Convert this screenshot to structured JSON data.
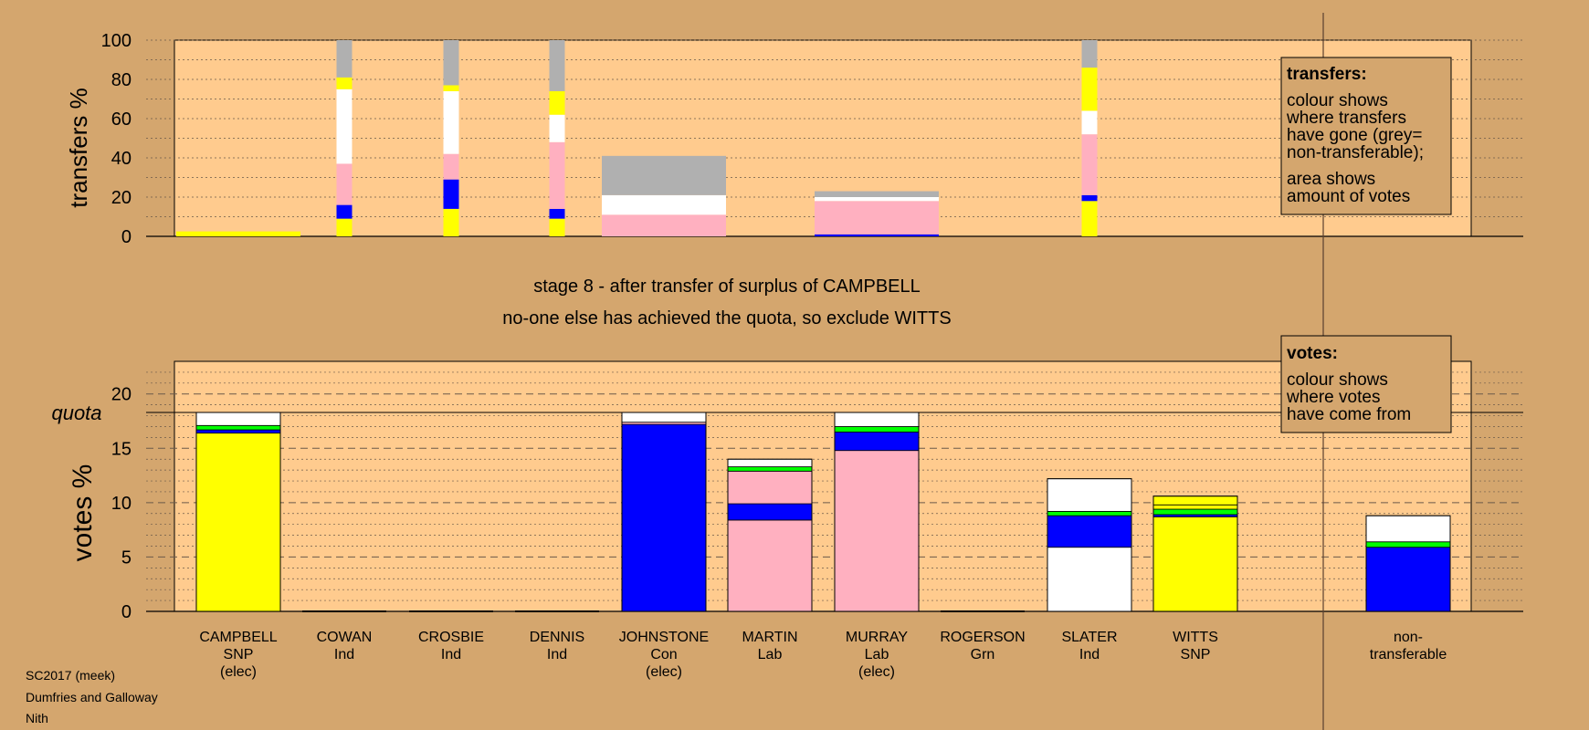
{
  "chart_data": {
    "type": "bar",
    "colors": {
      "background": "#d4a66e",
      "plot_panel": "#ffcb8e",
      "SNP": "#ffff00",
      "Con": "#0000ff",
      "Lab": "#ffb0c0",
      "Grn": "#00ff00",
      "Ind": "#ffffff",
      "non_transferable": "#b0b0b0"
    },
    "top_panel": {
      "ylabel": "transfers %",
      "yticks": [
        "0",
        "20",
        "40",
        "60",
        "80",
        "100"
      ],
      "ylim": [
        0,
        100
      ],
      "bars": [
        {
          "candidate": "CAMPBELL",
          "width": "wide",
          "segments": [
            {
              "party": "SNP",
              "from": 0,
              "to": 2.5
            }
          ]
        },
        {
          "candidate": "COWAN",
          "width": "narrow",
          "segments": [
            {
              "party": "SNP",
              "from": 0,
              "to": 9
            },
            {
              "party": "Con",
              "from": 9,
              "to": 16
            },
            {
              "party": "Lab",
              "from": 16,
              "to": 37
            },
            {
              "party": "Ind",
              "from": 37,
              "to": 75
            },
            {
              "party": "SNP",
              "from": 75,
              "to": 81
            },
            {
              "party": "non_transferable",
              "from": 81,
              "to": 100
            }
          ]
        },
        {
          "candidate": "CROSBIE",
          "width": "narrow",
          "segments": [
            {
              "party": "SNP",
              "from": 0,
              "to": 14
            },
            {
              "party": "Con",
              "from": 14,
              "to": 29
            },
            {
              "party": "Lab",
              "from": 29,
              "to": 42
            },
            {
              "party": "Ind",
              "from": 42,
              "to": 74
            },
            {
              "party": "SNP",
              "from": 74,
              "to": 77
            },
            {
              "party": "non_transferable",
              "from": 77,
              "to": 100
            }
          ]
        },
        {
          "candidate": "DENNIS",
          "width": "narrow",
          "segments": [
            {
              "party": "SNP",
              "from": 0,
              "to": 9
            },
            {
              "party": "Con",
              "from": 9,
              "to": 14
            },
            {
              "party": "Lab",
              "from": 14,
              "to": 48
            },
            {
              "party": "Ind",
              "from": 48,
              "to": 62
            },
            {
              "party": "SNP",
              "from": 62,
              "to": 74
            },
            {
              "party": "non_transferable",
              "from": 74,
              "to": 100
            }
          ]
        },
        {
          "candidate": "JOHNSTONE",
          "width": "wide",
          "segments": [
            {
              "party": "Lab",
              "from": 0,
              "to": 11
            },
            {
              "party": "Ind",
              "from": 11,
              "to": 21
            },
            {
              "party": "non_transferable",
              "from": 21,
              "to": 41
            }
          ]
        },
        {
          "candidate": "MURRAY",
          "width": "wide",
          "segments": [
            {
              "party": "Con",
              "from": 0,
              "to": 1
            },
            {
              "party": "Lab",
              "from": 1,
              "to": 18
            },
            {
              "party": "Ind",
              "from": 18,
              "to": 20
            },
            {
              "party": "non_transferable",
              "from": 20,
              "to": 23
            }
          ]
        },
        {
          "candidate": "SLATER",
          "width": "narrow",
          "segments": [
            {
              "party": "SNP",
              "from": 0,
              "to": 18
            },
            {
              "party": "Con",
              "from": 18,
              "to": 21
            },
            {
              "party": "Lab",
              "from": 21,
              "to": 52
            },
            {
              "party": "Ind",
              "from": 52,
              "to": 64
            },
            {
              "party": "SNP",
              "from": 64,
              "to": 86
            },
            {
              "party": "non_transferable",
              "from": 86,
              "to": 100
            }
          ]
        }
      ]
    },
    "bottom_panel": {
      "ylabel": "votes %",
      "yticks": [
        "0",
        "5",
        "10",
        "15",
        "20"
      ],
      "ylim": [
        0,
        23
      ],
      "quota": 18.3,
      "quota_label": "quota",
      "bars": [
        {
          "candidate": "CAMPBELL",
          "segments": [
            {
              "party": "SNP",
              "from": 0,
              "to": 16.4
            },
            {
              "party": "Con",
              "from": 16.4,
              "to": 16.7
            },
            {
              "party": "Grn",
              "from": 16.7,
              "to": 17.1
            },
            {
              "party": "Ind",
              "from": 17.1,
              "to": 18.3
            }
          ]
        },
        {
          "candidate": "COWAN",
          "segments": []
        },
        {
          "candidate": "CROSBIE",
          "segments": []
        },
        {
          "candidate": "DENNIS",
          "segments": []
        },
        {
          "candidate": "JOHNSTONE",
          "segments": [
            {
              "party": "Con",
              "from": 0,
              "to": 17.2
            },
            {
              "party": "Lab",
              "from": 17.2,
              "to": 17.4
            },
            {
              "party": "Ind",
              "from": 17.4,
              "to": 18.3
            }
          ]
        },
        {
          "candidate": "MARTIN",
          "segments": [
            {
              "party": "Lab",
              "from": 0,
              "to": 8.4
            },
            {
              "party": "Con",
              "from": 8.4,
              "to": 9.9
            },
            {
              "party": "Lab",
              "from": 9.9,
              "to": 12.9
            },
            {
              "party": "Grn",
              "from": 12.9,
              "to": 13.3
            },
            {
              "party": "Ind",
              "from": 13.3,
              "to": 14.0
            }
          ]
        },
        {
          "candidate": "MURRAY",
          "segments": [
            {
              "party": "Lab",
              "from": 0,
              "to": 14.8
            },
            {
              "party": "Con",
              "from": 14.8,
              "to": 16.5
            },
            {
              "party": "Grn",
              "from": 16.5,
              "to": 17.0
            },
            {
              "party": "Ind",
              "from": 17.0,
              "to": 18.3
            }
          ]
        },
        {
          "candidate": "ROGERSON",
          "segments": []
        },
        {
          "candidate": "SLATER",
          "segments": [
            {
              "party": "Ind",
              "from": 0,
              "to": 5.9
            },
            {
              "party": "Con",
              "from": 5.9,
              "to": 8.8
            },
            {
              "party": "Grn",
              "from": 8.8,
              "to": 9.2
            },
            {
              "party": "Ind",
              "from": 9.2,
              "to": 12.2
            }
          ]
        },
        {
          "candidate": "WITTS",
          "segments": [
            {
              "party": "SNP",
              "from": 0,
              "to": 8.7
            },
            {
              "party": "Con",
              "from": 8.7,
              "to": 8.9
            },
            {
              "party": "Grn",
              "from": 8.9,
              "to": 9.4
            },
            {
              "party": "SNP",
              "from": 9.4,
              "to": 9.8
            },
            {
              "party": "SNP",
              "from": 9.8,
              "to": 10.6
            }
          ]
        },
        {
          "candidate": "non-transferable",
          "segments": [
            {
              "party": "Con",
              "from": 0,
              "to": 5.9
            },
            {
              "party": "Grn",
              "from": 5.9,
              "to": 6.4
            },
            {
              "party": "Ind",
              "from": 6.4,
              "to": 8.8
            }
          ]
        }
      ]
    },
    "categories": [
      {
        "name": "CAMPBELL",
        "lines": [
          "CAMPBELL",
          "SNP",
          "(elec)"
        ]
      },
      {
        "name": "COWAN",
        "lines": [
          "COWAN",
          "Ind"
        ]
      },
      {
        "name": "CROSBIE",
        "lines": [
          "CROSBIE",
          "Ind"
        ]
      },
      {
        "name": "DENNIS",
        "lines": [
          "DENNIS",
          "Ind"
        ]
      },
      {
        "name": "JOHNSTONE",
        "lines": [
          "JOHNSTONE",
          "Con",
          "(elec)"
        ]
      },
      {
        "name": "MARTIN",
        "lines": [
          "MARTIN",
          "Lab"
        ]
      },
      {
        "name": "MURRAY",
        "lines": [
          "MURRAY",
          "Lab",
          "(elec)"
        ]
      },
      {
        "name": "ROGERSON",
        "lines": [
          "ROGERSON",
          "Grn"
        ]
      },
      {
        "name": "SLATER",
        "lines": [
          "SLATER",
          "Ind"
        ]
      },
      {
        "name": "WITTS",
        "lines": [
          "WITTS",
          "SNP"
        ]
      },
      {
        "name": "non-transferable",
        "lines": [
          "non-",
          "transferable"
        ]
      }
    ],
    "stage_title": "stage 8 - after transfer of surplus of CAMPBELL",
    "stage_subtitle": "no-one else has achieved the quota, so exclude WITTS",
    "transfers_legend": {
      "title": "transfers:",
      "lines": [
        "colour shows",
        "where transfers",
        "have gone (grey=",
        "non-transferable);"
      ],
      "lines2": [
        "area shows",
        "amount of votes"
      ]
    },
    "votes_legend": {
      "title": "votes:",
      "lines": [
        "colour shows",
        "where votes",
        "have come from"
      ]
    }
  },
  "footer": {
    "line1": "SC2017 (meek)",
    "line2": "Dumfries and Galloway",
    "line3": "Nith"
  }
}
